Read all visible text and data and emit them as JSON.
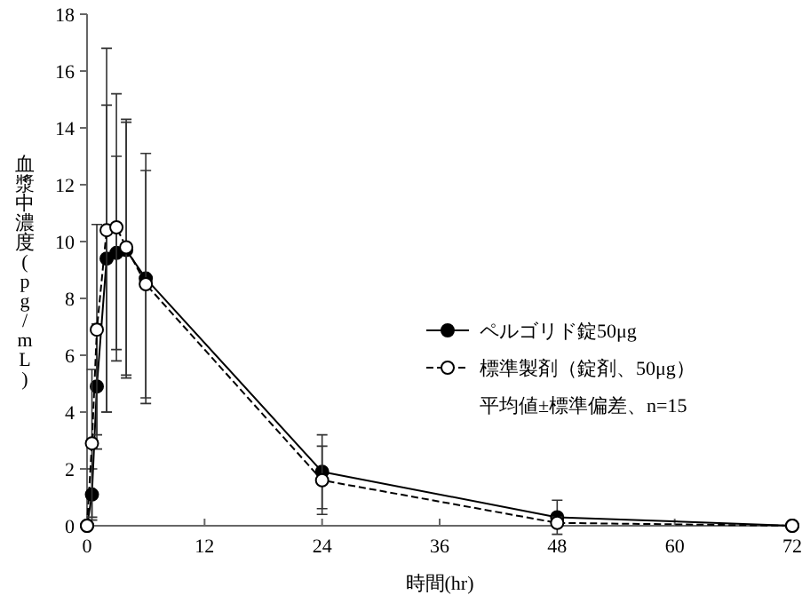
{
  "chart_data": {
    "type": "line",
    "xlabel": "時間(hr)",
    "ylabel": "血漿中濃度(pg/mL)",
    "x": [
      0,
      0.5,
      1,
      2,
      3,
      4,
      6,
      24,
      48,
      72
    ],
    "xlim": [
      0,
      72
    ],
    "xticks": [
      0,
      12,
      24,
      36,
      48,
      60,
      72
    ],
    "ylim": [
      0,
      18
    ],
    "yticks": [
      0,
      2,
      4,
      6,
      8,
      10,
      12,
      14,
      16,
      18
    ],
    "marker": "circle",
    "legend": "right",
    "grid": false,
    "series": [
      {
        "name": "ペルゴリド錠50μg",
        "color": "#000000",
        "line_style": "solid",
        "values": [
          0,
          1.1,
          4.9,
          9.4,
          9.6,
          9.7,
          8.7,
          1.9,
          0.3,
          0
        ],
        "errors": [
          null,
          0.9,
          2.2,
          5.4,
          3.4,
          4.5,
          4.4,
          1.3,
          0.6,
          null
        ]
      },
      {
        "name": "標準製剤（錠剤、50μg）",
        "color": "#ffffff",
        "line_style": "dashed",
        "values": [
          0,
          2.9,
          6.9,
          10.4,
          10.5,
          9.8,
          8.5,
          1.6,
          0.1,
          0
        ],
        "errors": [
          null,
          2.6,
          3.7,
          6.4,
          4.7,
          4.5,
          4.0,
          1.2,
          [
            0.1,
            0.2
          ],
          null
        ]
      }
    ],
    "annotations": [
      "平均値±標準偏差、n=15"
    ]
  }
}
